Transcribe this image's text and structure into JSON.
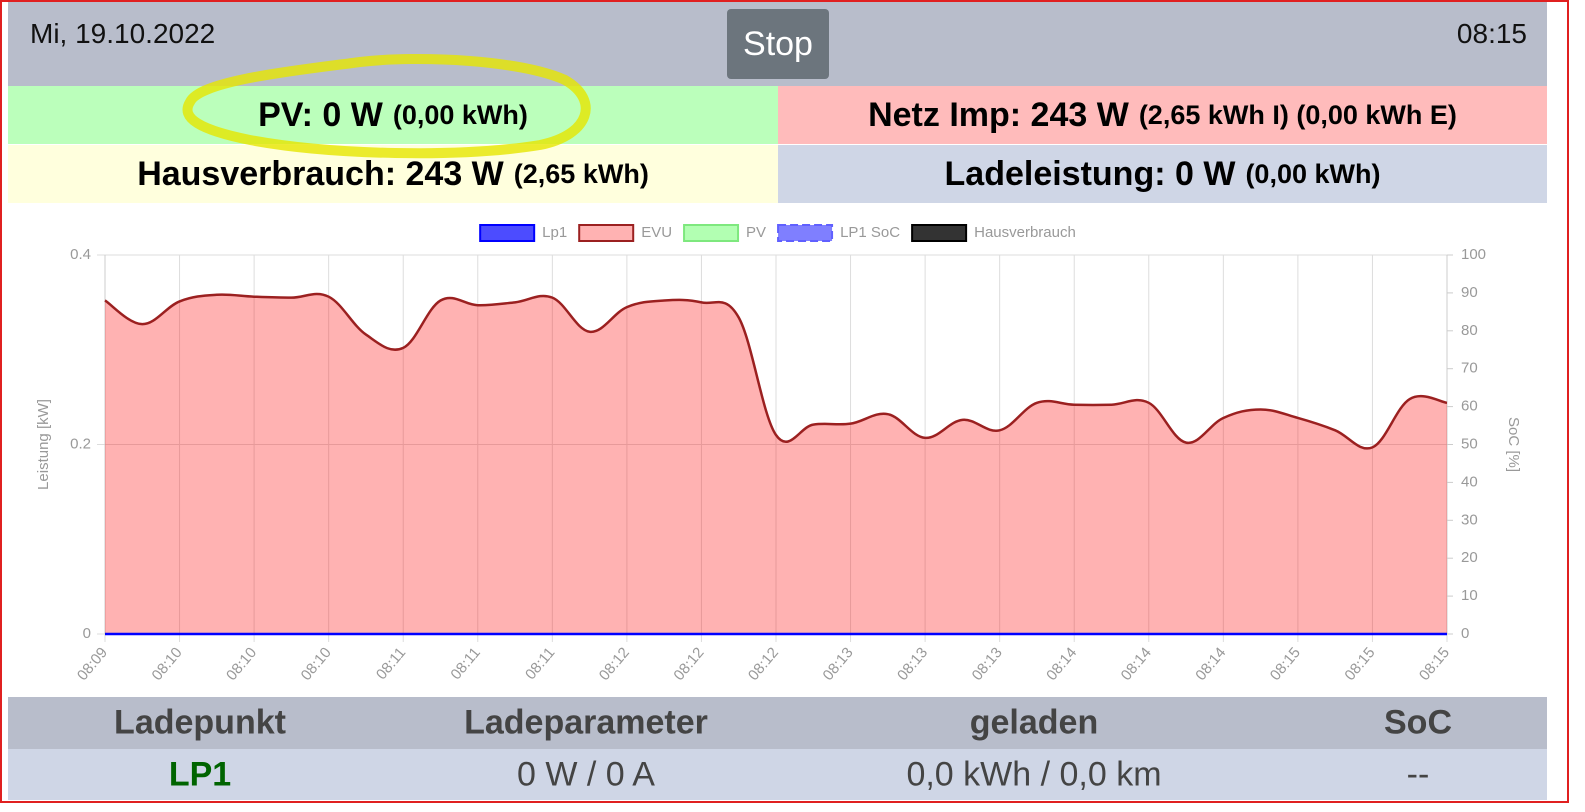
{
  "header": {
    "date": "Mi, 19.10.2022",
    "button": "Stop",
    "time": "08:15"
  },
  "tiles": [
    {
      "main": "PV: 0 W",
      "detail": "(0,00 kWh)"
    },
    {
      "main": "Netz Imp: 243 W",
      "detail": "(2,65 kWh I) (0,00 kWh E)"
    },
    {
      "main": "Hausverbrauch: 243 W",
      "detail": "(2,65 kWh)"
    },
    {
      "main": "Ladeleistung: 0 W",
      "detail": "(0,00 kWh)"
    }
  ],
  "chart_data": {
    "type": "line",
    "ylabel": "Leistung [kW]",
    "y2label": "SoC [%]",
    "categories": [
      "08:09",
      null,
      "08:10",
      null,
      "08:10",
      null,
      "08:10",
      null,
      "08:11",
      null,
      "08:11",
      null,
      "08:11",
      null,
      "08:12",
      null,
      "08:12",
      null,
      "08:12",
      null,
      "08:13",
      null,
      "08:13",
      null,
      "08:13",
      null,
      "08:14",
      null,
      "08:14",
      null,
      "08:14",
      null,
      "08:15",
      null,
      "08:15",
      null,
      "08:15"
    ],
    "ylim": [
      0,
      0.4
    ],
    "yticks": [
      0,
      0.2,
      0.4
    ],
    "y2lim": [
      0,
      100
    ],
    "y2ticks": [
      0,
      10,
      20,
      30,
      40,
      50,
      60,
      70,
      80,
      90,
      100
    ],
    "grid": true,
    "legend": "top",
    "series": [
      {
        "name": "Lp1",
        "color": "#0000ff",
        "fill": "rgba(0,0,255,0.7)",
        "values": [
          0,
          0,
          0,
          0,
          0,
          0,
          0,
          0,
          0,
          0,
          0,
          0,
          0,
          0,
          0,
          0,
          0,
          0,
          0,
          0,
          0,
          0,
          0,
          0,
          0,
          0,
          0,
          0,
          0,
          0,
          0,
          0,
          0,
          0,
          0,
          0,
          0
        ]
      },
      {
        "name": "EVU",
        "color": "#9b2020",
        "fill": "rgba(255,0,0,0.3)",
        "area": true,
        "values": [
          0.352,
          0.327,
          0.351,
          0.358,
          0.356,
          0.355,
          0.356,
          0.316,
          0.302,
          0.352,
          0.347,
          0.35,
          0.355,
          0.319,
          0.345,
          0.352,
          0.35,
          0.334,
          0.21,
          0.221,
          0.222,
          0.232,
          0.207,
          0.226,
          0.215,
          0.244,
          0.242,
          0.242,
          0.244,
          0.202,
          0.228,
          0.237,
          0.228,
          0.215,
          0.197,
          0.248,
          0.244
        ]
      },
      {
        "name": "PV",
        "color": "#7ee87e",
        "fill": "rgba(0,255,0,0.3)",
        "values": [
          null,
          null,
          null,
          null,
          null,
          null,
          null,
          null,
          null,
          null,
          null,
          null,
          null,
          null,
          null,
          null,
          null,
          null,
          null,
          null,
          null,
          null,
          null,
          null,
          null,
          null,
          null,
          null,
          null,
          null,
          null,
          null,
          null,
          null,
          null,
          null,
          null
        ]
      },
      {
        "name": "LP1 SoC",
        "color": "#6060ff",
        "fill": "rgba(0,0,255,0.5)",
        "dashed": true,
        "axis": "y2",
        "values": [
          null,
          null,
          null,
          null,
          null,
          null,
          null,
          null,
          null,
          null,
          null,
          null,
          null,
          null,
          null,
          null,
          null,
          null,
          null,
          null,
          null,
          null,
          null,
          null,
          null,
          null,
          null,
          null,
          null,
          null,
          null,
          null,
          null,
          null,
          null,
          null,
          null
        ]
      },
      {
        "name": "Hausverbrauch",
        "color": "#000000",
        "fill": "rgba(0,0,0,0.8)",
        "values": [
          null,
          null,
          null,
          null,
          null,
          null,
          null,
          null,
          null,
          null,
          null,
          null,
          null,
          null,
          null,
          null,
          null,
          null,
          null,
          null,
          null,
          null,
          null,
          null,
          null,
          null,
          null,
          null,
          null,
          null,
          null,
          null,
          null,
          null,
          null,
          null,
          null
        ]
      }
    ]
  },
  "table": {
    "columns": [
      "Ladepunkt",
      "Ladeparameter",
      "geladen",
      "SoC"
    ],
    "rows": [
      [
        "LP1",
        "0 W / 0 A",
        "0,0 kWh / 0,0 km",
        "--"
      ]
    ]
  }
}
